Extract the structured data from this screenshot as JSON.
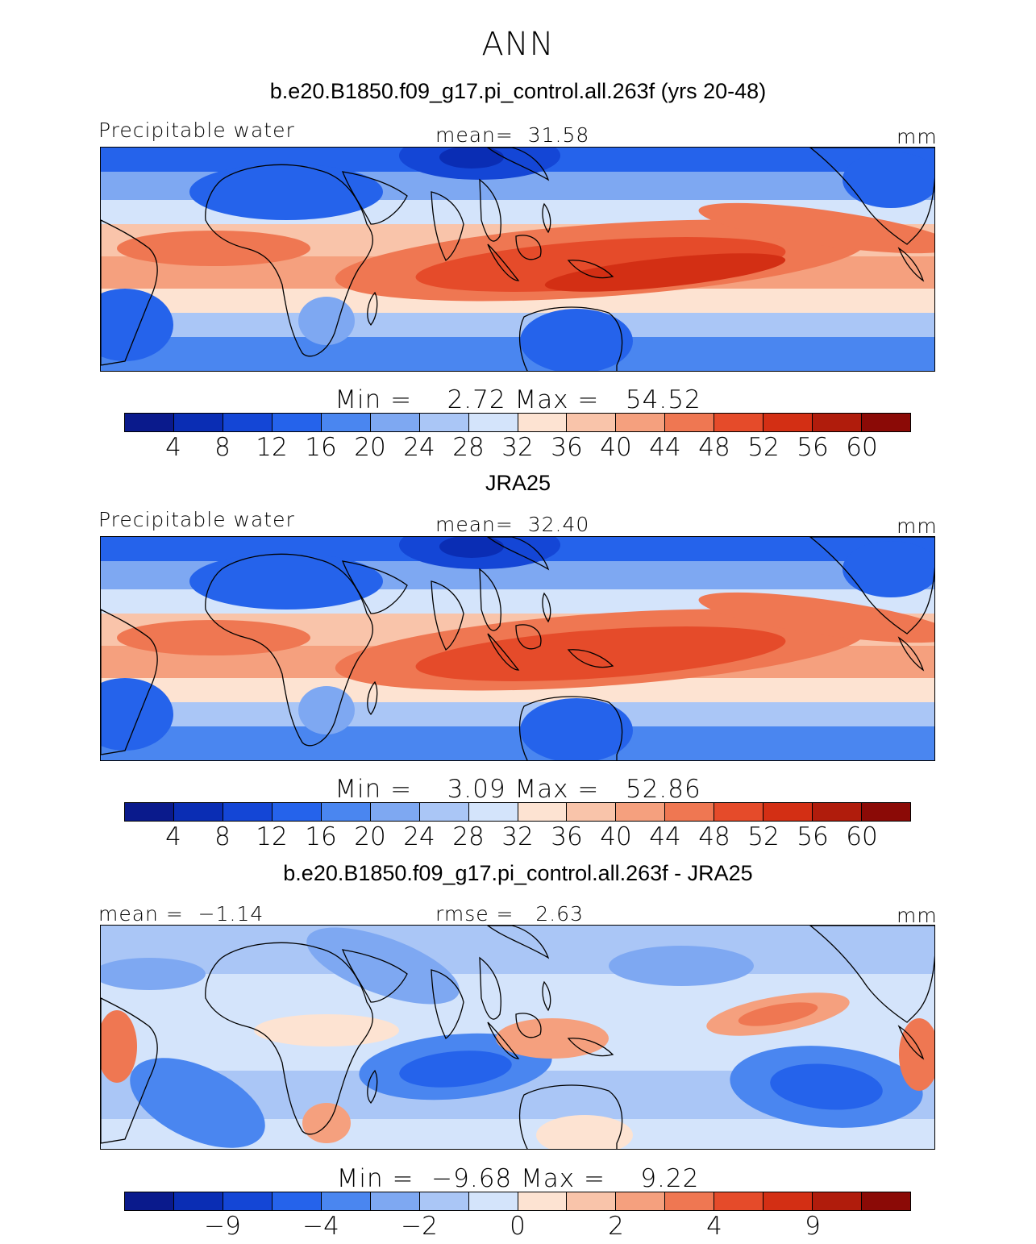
{
  "title": "ANN",
  "panels": [
    {
      "title": "b.e20.B1850.f09_g17.pi_control.all.263f (yrs 20-48)",
      "left_label": "Precipitable water",
      "center_label": "mean=  31.58",
      "right_label": "mm",
      "minmax": "Min =    2.72 Max =   54.52",
      "ticks": [
        "4",
        "8",
        "12",
        "16",
        "20",
        "24",
        "28",
        "32",
        "36",
        "40",
        "44",
        "48",
        "52",
        "56",
        "60"
      ],
      "kind": "model"
    },
    {
      "title": "JRA25",
      "left_label": "Precipitable water",
      "center_label": "mean=  32.40",
      "right_label": "mm",
      "minmax": "Min =    3.09 Max =   52.86",
      "ticks": [
        "4",
        "8",
        "12",
        "16",
        "20",
        "24",
        "28",
        "32",
        "36",
        "40",
        "44",
        "48",
        "52",
        "56",
        "60"
      ],
      "kind": "obs"
    },
    {
      "title": "b.e20.B1850.f09_g17.pi_control.all.263f - JRA25",
      "left_label": "mean =  −1.14",
      "center_label": "rmse =   2.63",
      "right_label": "mm",
      "minmax": "Min =  −9.68 Max =    9.22",
      "ticks": [
        "−9",
        "−4",
        "−2",
        "0",
        "2",
        "4",
        "9"
      ],
      "kind": "diff"
    }
  ],
  "colorbar_colors": [
    "#0a1a8c",
    "#0a2db4",
    "#1446d6",
    "#2563eb",
    "#4a86f0",
    "#7ea8f2",
    "#aac6f6",
    "#d4e4fb",
    "#fde3d2",
    "#f9c4aa",
    "#f5a07e",
    "#ef7752",
    "#e54b2a",
    "#d32f14",
    "#b01c0c",
    "#8b0a06"
  ],
  "colorbar_tick_slots": {
    "model": [
      1,
      2,
      3,
      4,
      5,
      6,
      7,
      8,
      9,
      10,
      11,
      12,
      13,
      14,
      15
    ],
    "obs": [
      1,
      2,
      3,
      4,
      5,
      6,
      7,
      8,
      9,
      10,
      11,
      12,
      13,
      14,
      15
    ],
    "diff": [
      2,
      4,
      6,
      8,
      10,
      12,
      14
    ]
  }
}
